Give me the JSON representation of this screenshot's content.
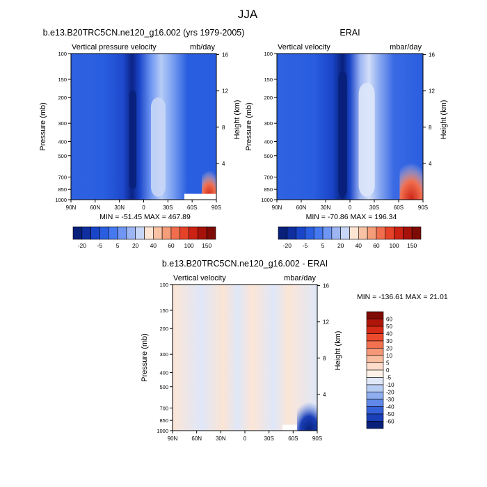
{
  "figure": {
    "title": "JJA"
  },
  "chart_data": [
    {
      "type": "heatmap",
      "title": "b.e13.B20TRC5CN.ne120_g16.002 (yrs 1979-2005)",
      "left_label": "Vertical pressure velocity",
      "right_label": "mb/day",
      "ylabel": "Pressure (mb)",
      "y2label": "Height (km)",
      "x_ticks": [
        "90N",
        "60N",
        "30N",
        "0",
        "30S",
        "60S",
        "90S"
      ],
      "y_ticks": [
        "100",
        "150",
        "200",
        "300",
        "400",
        "500",
        "700",
        "850",
        "1000"
      ],
      "y2_ticks": [
        "16",
        "12",
        "8",
        "4"
      ],
      "stats": "MIN = -51.45  MAX = 467.89",
      "colorbar": {
        "labels": [
          "-20",
          "-5",
          "5",
          "20",
          "40",
          "60",
          "100",
          "150"
        ],
        "colors": [
          "#08207a",
          "#0f2fa0",
          "#1a45c8",
          "#2a5ee0",
          "#4678ef",
          "#6e96f2",
          "#9db5f3",
          "#c8d6f7",
          "#fde4d3",
          "#f9c2a4",
          "#f59d79",
          "#f06e4e",
          "#e64228",
          "#cc2214",
          "#a51209",
          "#7e0b06"
        ]
      }
    },
    {
      "type": "heatmap",
      "title": "ERAI",
      "left_label": "Vertical velocity",
      "right_label": "mbar/day",
      "ylabel": "Pressure (mb)",
      "y2label": "Height (km)",
      "x_ticks": [
        "90N",
        "60N",
        "30N",
        "0",
        "30S",
        "60S",
        "90S"
      ],
      "y_ticks": [
        "100",
        "150",
        "200",
        "300",
        "400",
        "500",
        "700",
        "850",
        "1000"
      ],
      "y2_ticks": [
        "16",
        "12",
        "8",
        "4"
      ],
      "stats": "MIN = -70.86  MAX = 196.34",
      "colorbar": {
        "labels": [
          "-20",
          "-5",
          "5",
          "20",
          "40",
          "60",
          "100",
          "150"
        ],
        "colors": [
          "#08207a",
          "#0f2fa0",
          "#1a45c8",
          "#2a5ee0",
          "#4678ef",
          "#6e96f2",
          "#9db5f3",
          "#c8d6f7",
          "#fde4d3",
          "#f9c2a4",
          "#f59d79",
          "#f06e4e",
          "#e64228",
          "#cc2214",
          "#a51209",
          "#7e0b06"
        ]
      }
    },
    {
      "type": "heatmap",
      "title": "b.e13.B20TRC5CN.ne120_g16.002 - ERAI",
      "left_label": "Vertical velocity",
      "right_label": "mbar/day",
      "ylabel": "Pressure (mb)",
      "y2label": "Height (km)",
      "x_ticks": [
        "90N",
        "60N",
        "30N",
        "0",
        "30S",
        "60S",
        "90S"
      ],
      "y_ticks": [
        "100",
        "150",
        "200",
        "300",
        "400",
        "500",
        "700",
        "850",
        "1000"
      ],
      "y2_ticks": [
        "16",
        "12",
        "8",
        "4"
      ],
      "stats": "MIN = -136.61  MAX =  21.01",
      "colorbar": {
        "labels": [
          "60",
          "50",
          "40",
          "30",
          "20",
          "10",
          "5",
          "0",
          "-5",
          "-10",
          "-20",
          "-30",
          "-40",
          "-50",
          "-60"
        ],
        "colors": [
          "#7e0b06",
          "#b0150a",
          "#d42a16",
          "#ec4a2c",
          "#f2714f",
          "#f69777",
          "#f9bda0",
          "#fddccb",
          "#fdf0e6",
          "#dfe7f8",
          "#b8cdf4",
          "#8faeef",
          "#5f88e8",
          "#3460d8",
          "#1a3fb8",
          "#08207a"
        ]
      }
    }
  ]
}
